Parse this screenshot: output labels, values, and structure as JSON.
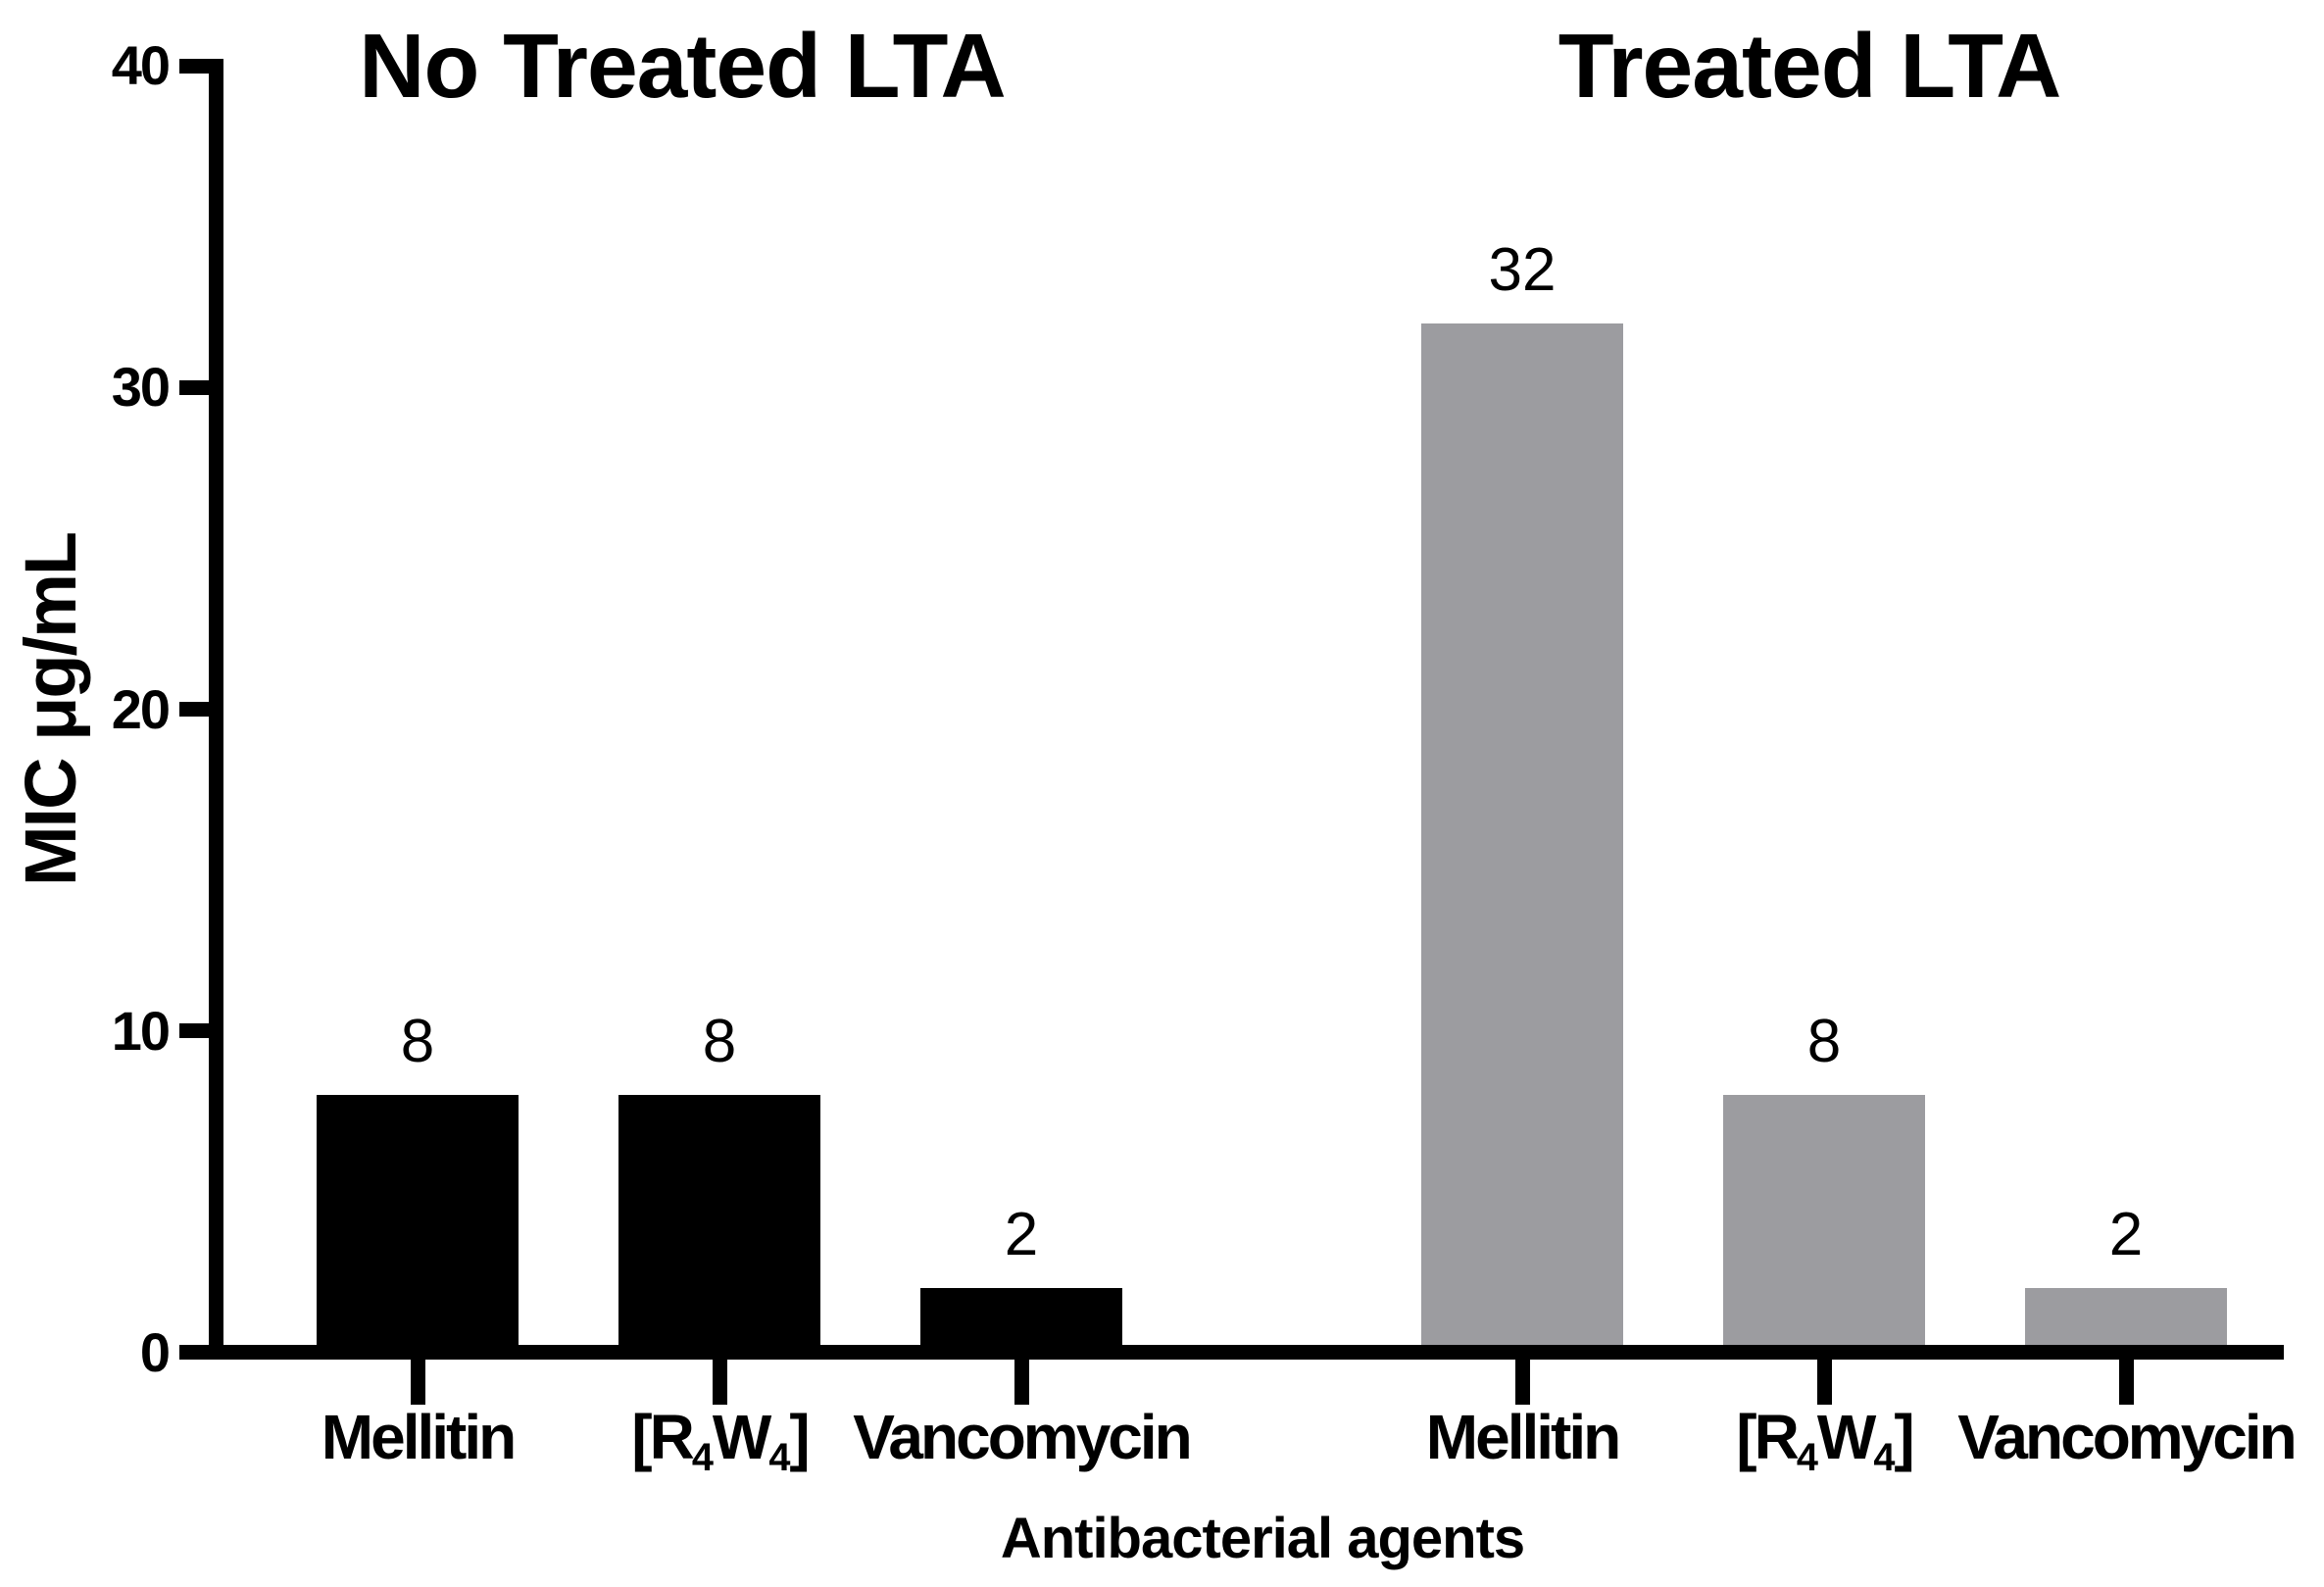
{
  "figure": {
    "background": "#ffffff",
    "bar_color_left": "#000000",
    "bar_color_right": "#9c9ca0",
    "panel_titles": [
      {
        "text": "No Treated LTA"
      },
      {
        "text": "Treated LTA"
      }
    ],
    "y_axis": {
      "label": "MIC μg/mL"
    },
    "x_axis": {
      "label": "Antibacterial agents"
    }
  },
  "chart_data": {
    "type": "bar",
    "title": "",
    "ylabel": "MIC μg/mL",
    "xlabel": "Antibacterial agents",
    "ylim": [
      0,
      40
    ],
    "yticks": [
      0,
      10,
      20,
      30,
      40
    ],
    "grid": false,
    "legend_position": "none",
    "bar_value_labels_shown": true,
    "groups": [
      {
        "title": "No Treated LTA",
        "bar_color": "#000000",
        "categories": [
          "Mellitin",
          "[R₄W₄]",
          "Vancomycin"
        ],
        "categories_runs": [
          [
            {
              "t": "Mellitin"
            }
          ],
          [
            {
              "t": "[R"
            },
            {
              "t": "4",
              "sub": true
            },
            {
              "t": "W"
            },
            {
              "t": "4",
              "sub": true
            },
            {
              "t": "]"
            }
          ],
          [
            {
              "t": "Vancomycin"
            }
          ]
        ],
        "values": [
          8,
          8,
          2
        ],
        "bar_labels": [
          "8",
          "8",
          "2"
        ]
      },
      {
        "title": "Treated LTA",
        "bar_color": "#9c9ca0",
        "categories": [
          "Mellitin",
          "[R₄W₄]",
          "Vancomycin"
        ],
        "categories_runs": [
          [
            {
              "t": "Mellitin"
            }
          ],
          [
            {
              "t": "[R"
            },
            {
              "t": "4",
              "sub": true
            },
            {
              "t": "W"
            },
            {
              "t": "4",
              "sub": true
            },
            {
              "t": "]"
            }
          ],
          [
            {
              "t": "Vancomycin"
            }
          ]
        ],
        "values": [
          32,
          8,
          2
        ],
        "bar_labels": [
          "32",
          "8",
          "2"
        ]
      }
    ]
  }
}
